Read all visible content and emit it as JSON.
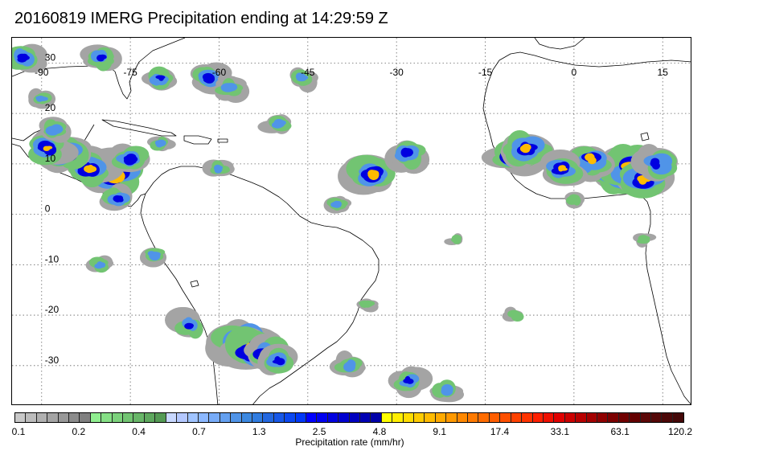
{
  "title": "20160819 IMERG Precipitation ending at 14:29:59 Z",
  "map": {
    "lon_range": [
      -95,
      20
    ],
    "lat_range": [
      -38,
      35
    ],
    "lon_ticks": [
      {
        "value": -90,
        "label": "-90"
      },
      {
        "value": -75,
        "label": "-75"
      },
      {
        "value": -60,
        "label": "-60"
      },
      {
        "value": -45,
        "label": "-45"
      },
      {
        "value": -30,
        "label": "-30"
      },
      {
        "value": -15,
        "label": "-15"
      },
      {
        "value": 0,
        "label": "0"
      },
      {
        "value": 15,
        "label": "15"
      }
    ],
    "lat_ticks": [
      {
        "value": 30,
        "label": "30"
      },
      {
        "value": 20,
        "label": "20"
      },
      {
        "value": 10,
        "label": "10"
      },
      {
        "value": 0,
        "label": "0"
      },
      {
        "value": -10,
        "label": "-10"
      },
      {
        "value": -20,
        "label": "-20"
      },
      {
        "value": -30,
        "label": "-30"
      }
    ],
    "grid": "dotted",
    "coastline_color": "#000000"
  },
  "colorbar": {
    "label": "Precipitation rate (mm/hr)",
    "tick_labels": [
      "0.1",
      "0.2",
      "0.4",
      "0.7",
      "1.3",
      "2.5",
      "4.8",
      "9.1",
      "17.4",
      "33.1",
      "63.1",
      "120.2"
    ],
    "colors": [
      "#c8c8c8",
      "#bcbcbc",
      "#b0b0b0",
      "#a4a4a4",
      "#989898",
      "#8c8c8c",
      "#808080",
      "#90ee90",
      "#86e086",
      "#7cd27c",
      "#72c472",
      "#68b668",
      "#5ea85e",
      "#549a54",
      "#c8d8ff",
      "#b4c8ff",
      "#a0c4ff",
      "#8cb8ff",
      "#78acf8",
      "#64a0f0",
      "#5094e8",
      "#3c88e0",
      "#307ce0",
      "#2468e0",
      "#1858e8",
      "#0c48f0",
      "#0038f8",
      "#0000ff",
      "#0000f0",
      "#0000e0",
      "#0000d0",
      "#0000c0",
      "#0000b4",
      "#0000a8",
      "#ffff00",
      "#ffee00",
      "#ffdd00",
      "#ffcc00",
      "#ffbb00",
      "#ffaa00",
      "#ff9900",
      "#ff8800",
      "#ff7a00",
      "#ff6c00",
      "#ff5e00",
      "#ff5000",
      "#ff4200",
      "#ff3400",
      "#ff2000",
      "#f01000",
      "#e00000",
      "#cc0000",
      "#b80000",
      "#a40000",
      "#900000",
      "#7c0000",
      "#700000",
      "#640000",
      "#5c0808",
      "#540808",
      "#4c0808",
      "#440808"
    ]
  },
  "precip_cells": [
    {
      "lon": -78,
      "lat": 8,
      "rate": 40
    },
    {
      "lon": -82,
      "lat": 9,
      "rate": 12
    },
    {
      "lon": -86,
      "lat": 12,
      "rate": 15
    },
    {
      "lon": -89,
      "lat": 13,
      "rate": 8
    },
    {
      "lon": -75,
      "lat": 11,
      "rate": 6
    },
    {
      "lon": -77,
      "lat": 3,
      "rate": 3
    },
    {
      "lon": -62,
      "lat": 27,
      "rate": 5
    },
    {
      "lon": -34,
      "lat": 8,
      "rate": 14
    },
    {
      "lon": -28,
      "lat": 12,
      "rate": 6
    },
    {
      "lon": -10,
      "lat": 12,
      "rate": 20
    },
    {
      "lon": -8,
      "lat": 13,
      "rate": 10
    },
    {
      "lon": 5,
      "lat": 9,
      "rate": 25
    },
    {
      "lon": 8,
      "lat": 8,
      "rate": 35
    },
    {
      "lon": 10,
      "lat": 9,
      "rate": 30
    },
    {
      "lon": 12,
      "lat": 7,
      "rate": 18
    },
    {
      "lon": 3,
      "lat": 11,
      "rate": 12
    },
    {
      "lon": -2,
      "lat": 9,
      "rate": 8
    },
    {
      "lon": 14,
      "lat": 10,
      "rate": 6
    },
    {
      "lon": -56,
      "lat": -25,
      "rate": 25
    },
    {
      "lon": -54,
      "lat": -27,
      "rate": 30
    },
    {
      "lon": -52,
      "lat": -28,
      "rate": 12
    },
    {
      "lon": -50,
      "lat": -29,
      "rate": 4
    },
    {
      "lon": -65,
      "lat": -22,
      "rate": 3
    },
    {
      "lon": -38,
      "lat": -30,
      "rate": 2
    },
    {
      "lon": -28,
      "lat": -33,
      "rate": 3
    },
    {
      "lon": -22,
      "lat": -35,
      "rate": 2.5
    },
    {
      "lon": -93,
      "lat": 31,
      "rate": 4
    },
    {
      "lon": -80,
      "lat": 31,
      "rate": 3
    },
    {
      "lon": -70,
      "lat": 27,
      "rate": 3
    },
    {
      "lon": -58,
      "lat": 25,
      "rate": 2
    },
    {
      "lon": -46,
      "lat": 27,
      "rate": 1.5
    },
    {
      "lon": -50,
      "lat": 18,
      "rate": 1.5
    },
    {
      "lon": -60,
      "lat": 9,
      "rate": 1.2
    },
    {
      "lon": -40,
      "lat": 2,
      "rate": 1
    },
    {
      "lon": -88,
      "lat": 17,
      "rate": 2
    },
    {
      "lon": -90,
      "lat": 23,
      "rate": 1
    },
    {
      "lon": -70,
      "lat": 14,
      "rate": 1
    },
    {
      "lon": -80,
      "lat": -10,
      "rate": 1
    },
    {
      "lon": -71,
      "lat": -8,
      "rate": 1.5
    },
    {
      "lon": -10,
      "lat": -20,
      "rate": 0.6
    },
    {
      "lon": -35,
      "lat": -18,
      "rate": 0.5
    },
    {
      "lon": -20,
      "lat": -5,
      "rate": 0.4
    },
    {
      "lon": 0,
      "lat": 3,
      "rate": 0.6
    },
    {
      "lon": 12,
      "lat": -5,
      "rate": 0.5
    }
  ]
}
